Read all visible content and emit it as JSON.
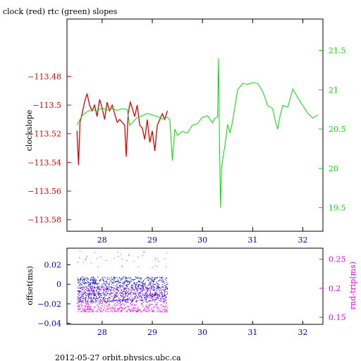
{
  "title": "clock (red) rtc (green) slopes",
  "footer": "2012-05-27 orbit.physics.ubc.ca",
  "colors": {
    "red": "#e00000",
    "green": "#00dd00",
    "blue": "#0000cc",
    "magenta": "#ee00ee",
    "frame": "#000000"
  },
  "chart_data": [
    {
      "type": "line",
      "ylabel_left": "clockslope",
      "xlim": [
        27.3,
        32.4
      ],
      "ylim_left": [
        -113.588,
        -113.44
      ],
      "ylim_right": [
        19.2,
        21.9
      ],
      "x_ticks": [
        28,
        29,
        30,
        31,
        32
      ],
      "y_ticks_left": [
        -113.48,
        -113.5,
        -113.52,
        -113.54,
        -113.56,
        -113.58
      ],
      "y_ticks_right": [
        19.5,
        20,
        20.5,
        21,
        21.5
      ],
      "series": [
        {
          "axis": "left",
          "color": "#e00000",
          "x": [
            27.5,
            27.53,
            27.56,
            27.6,
            27.65,
            27.7,
            27.75,
            27.8,
            27.85,
            27.9,
            27.95,
            28.0,
            28.05,
            28.1,
            28.15,
            28.2,
            28.25,
            28.3,
            28.35,
            28.4,
            28.45,
            28.48,
            28.52,
            28.56,
            28.6,
            28.65,
            28.7,
            28.75,
            28.8,
            28.85,
            28.9,
            28.95,
            29.0,
            29.05,
            29.1,
            29.15,
            29.2,
            29.25,
            29.3
          ],
          "y": [
            -113.518,
            -113.542,
            -113.512,
            -113.506,
            -113.498,
            -113.492,
            -113.5,
            -113.504,
            -113.5,
            -113.508,
            -113.496,
            -113.502,
            -113.51,
            -113.498,
            -113.504,
            -113.5,
            -113.506,
            -113.512,
            -113.51,
            -113.512,
            -113.514,
            -113.536,
            -113.506,
            -113.498,
            -113.502,
            -113.508,
            -113.5,
            -113.514,
            -113.516,
            -113.524,
            -113.51,
            -113.526,
            -113.518,
            -113.532,
            -113.514,
            -113.51,
            -113.506,
            -113.51,
            -113.504
          ]
        },
        {
          "axis": "right",
          "color": "#00dd00",
          "x": [
            27.5,
            27.6,
            27.7,
            27.8,
            27.9,
            28.0,
            28.1,
            28.2,
            28.3,
            28.4,
            28.5,
            28.55,
            28.6,
            28.7,
            28.8,
            28.9,
            29.0,
            29.1,
            29.2,
            29.3,
            29.35,
            29.4,
            29.45,
            29.5,
            29.6,
            29.7,
            29.8,
            29.9,
            30.0,
            30.1,
            30.2,
            30.25,
            30.3,
            30.32,
            30.34,
            30.36,
            30.38,
            30.4,
            30.45,
            30.5,
            30.55,
            30.6,
            30.7,
            30.8,
            30.9,
            31.0,
            31.1,
            31.2,
            31.3,
            31.4,
            31.45,
            31.5,
            31.55,
            31.6,
            31.7,
            31.8,
            31.9,
            32.0,
            32.1,
            32.2,
            32.3
          ],
          "y": [
            20.55,
            20.67,
            20.72,
            20.75,
            20.73,
            20.77,
            20.74,
            20.76,
            20.74,
            20.76,
            20.75,
            20.55,
            20.58,
            20.65,
            20.67,
            20.7,
            20.68,
            20.66,
            20.63,
            20.65,
            20.62,
            20.1,
            20.5,
            20.42,
            20.47,
            20.45,
            20.55,
            20.57,
            20.65,
            20.67,
            20.58,
            20.64,
            20.65,
            21.4,
            20.3,
            19.5,
            20.0,
            20.1,
            20.3,
            20.56,
            20.45,
            20.6,
            21.0,
            21.08,
            21.07,
            21.09,
            21.08,
            20.98,
            20.8,
            20.76,
            20.6,
            20.5,
            20.68,
            20.8,
            20.78,
            21.01,
            20.9,
            20.8,
            20.7,
            20.64,
            20.68
          ]
        }
      ]
    },
    {
      "type": "scatter",
      "ylabel_left": "offset(ms)",
      "ylabel_right": "rnd-trip(ms)",
      "xlim": [
        27.3,
        32.4
      ],
      "ylim_left": [
        -0.041,
        0.037
      ],
      "ylim_right": [
        0.138,
        0.269
      ],
      "x_ticks": [
        28,
        29,
        30,
        31,
        32
      ],
      "y_ticks_left": [
        0.02,
        0,
        -0.02,
        -0.04
      ],
      "y_ticks_right": [
        0.25,
        0.2,
        0.15
      ],
      "x_range_data": [
        27.5,
        29.3
      ],
      "series": [
        {
          "axis": "left",
          "color": "#0000cc",
          "band": [
            -0.018,
            0.008
          ]
        },
        {
          "axis": "right",
          "color": "#ee00ee",
          "band": [
            0.16,
            0.205
          ]
        }
      ]
    }
  ]
}
